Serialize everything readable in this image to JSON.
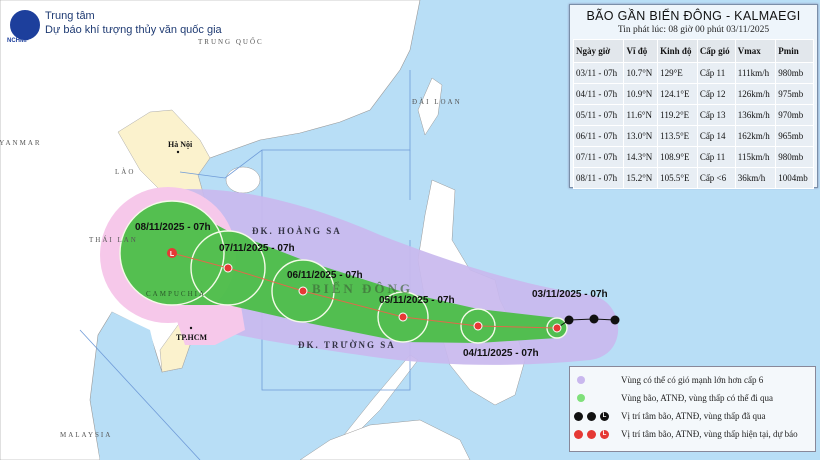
{
  "header": {
    "logo_text": "NCHMF",
    "org_line1": "Trung tâm",
    "org_line2": "Dự báo khí tượng thủy văn quốc gia"
  },
  "map_labels": {
    "china": "TRUNG QUỐC",
    "myanmar": "MYANMAR",
    "laos": "LÀO",
    "hanoi": "Hà Nội",
    "thailand": "THÁI LAN",
    "cambodia": "CAMPUCHIA",
    "hcm": "TP.HCM",
    "taiwan": "ĐÀI LOAN",
    "malaysia": "MALAYSIA",
    "hoang_sa": "ĐK. HOÀNG SA",
    "truong_sa": "ĐK. TRƯỜNG SA",
    "bien_dong": "BIỂN ĐÔNG"
  },
  "track_labels": {
    "d03": "03/11/2025 - 07h",
    "d04": "04/11/2025 - 07h",
    "d05": "05/11/2025 - 07h",
    "d06": "06/11/2025 - 07h",
    "d07": "07/11/2025 - 07h",
    "d08": "08/11/2025 - 07h"
  },
  "panel": {
    "title": "BÃO GẦN BIỂN ĐÔNG - KALMAEGI",
    "issued": "Tin phát lúc: 08 giờ 00 phút 03/11/2025",
    "headers": [
      "Ngày giờ",
      "Vĩ độ",
      "Kinh độ",
      "Cấp gió",
      "Vmax",
      "Pmin"
    ],
    "rows": [
      [
        "03/11 - 07h",
        "10.7°N",
        "129°E",
        "Cấp 11",
        "111km/h",
        "980mb"
      ],
      [
        "04/11 - 07h",
        "10.9°N",
        "124.1°E",
        "Cấp 12",
        "126km/h",
        "975mb"
      ],
      [
        "05/11 - 07h",
        "11.6°N",
        "119.2°E",
        "Cấp 13",
        "136km/h",
        "970mb"
      ],
      [
        "06/11 - 07h",
        "13.0°N",
        "113.5°E",
        "Cấp 14",
        "162km/h",
        "965mb"
      ],
      [
        "07/11 - 07h",
        "14.3°N",
        "108.9°E",
        "Cấp 11",
        "115km/h",
        "980mb"
      ],
      [
        "08/11 - 07h",
        "15.2°N",
        "105.5°E",
        "Cấp <6",
        "36km/h",
        "1004mb"
      ]
    ]
  },
  "legend": {
    "items": [
      {
        "label": "Vùng có thể có gió mạnh lớn hơn cấp 6",
        "color": "#c9b8ee"
      },
      {
        "label": "Vùng bão, ATNĐ, vùng thấp có thể đi qua",
        "color": "#7fe07a"
      },
      {
        "label": "Vị trí tâm bão, ATNĐ, vùng thấp đã qua",
        "color": "#111111"
      },
      {
        "label": "Vị trí tâm bão, ATNĐ, vùng thấp hiện tại, dự báo",
        "color": "#e53935"
      }
    ],
    "low_symbol": "L"
  },
  "colors": {
    "sea": "#b8def6",
    "land": "#ffffff",
    "vietnam": "#fbf2cd",
    "danger_zone": "#c9b8ee",
    "danger_zone_land": "#f6c8ea",
    "track_cone": "#4cbf48",
    "forecast_center": "#e53935",
    "past_center": "#111111"
  }
}
